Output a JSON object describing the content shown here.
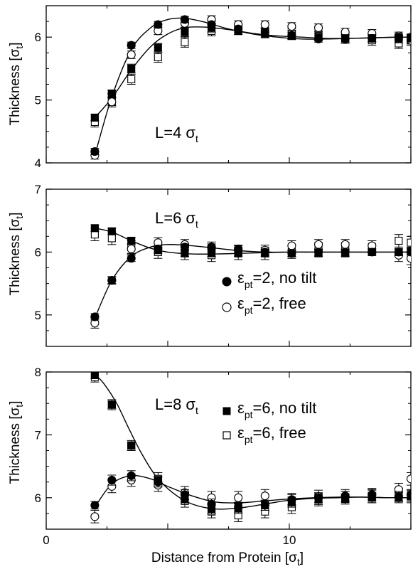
{
  "figure": {
    "xlabel": "Distance from Protein [σ",
    "xlabel_sub": "t",
    "xlabel_suffix": "]",
    "ylabel": "Thickness [σ",
    "ylabel_sub": "t",
    "ylabel_suffix": "]"
  },
  "legend": {
    "items": [
      {
        "marker": "filled-circle",
        "eps": "ε",
        "sub": "pt",
        "text": "=2, no tilt"
      },
      {
        "marker": "open-circle",
        "eps": "ε",
        "sub": "pt",
        "text": "=2, free"
      },
      {
        "marker": "filled-square",
        "eps": "ε",
        "sub": "pt",
        "text": "=6, no tilt"
      },
      {
        "marker": "open-square",
        "eps": "ε",
        "sub": "pt",
        "text": "=6, free"
      }
    ]
  },
  "chart_data": [
    {
      "type": "scatter",
      "panel_label": "L=4 σ",
      "panel_label_sub": "t",
      "xlim": [
        0,
        15
      ],
      "ylim": [
        4,
        6.5
      ],
      "yticks": [
        4,
        5,
        6
      ],
      "xticks": [
        0,
        10
      ],
      "series": [
        {
          "marker": "filled-circle",
          "x": [
            2,
            2.7,
            3.5,
            4.6,
            5.7,
            6.8,
            7.9,
            9,
            10.1,
            11.2,
            12.3,
            13.4,
            14.5,
            15
          ],
          "y": [
            4.18,
            5.1,
            5.87,
            6.2,
            6.28,
            6.2,
            6.13,
            6.08,
            6.03,
            5.97,
            5.97,
            5.98,
            6.0,
            6.0
          ],
          "err": [
            0.05,
            0.05,
            0.05,
            0.05,
            0.05,
            0.05,
            0.05,
            0.05,
            0.05,
            0.05,
            0.05,
            0.05,
            0.05,
            0.05
          ]
        },
        {
          "marker": "open-circle",
          "x": [
            2,
            2.7,
            3.5,
            4.6,
            5.7,
            6.8,
            7.9,
            9,
            10.1,
            11.2,
            12.3,
            13.4,
            14.5,
            15
          ],
          "y": [
            4.12,
            4.97,
            5.72,
            6.1,
            6.22,
            6.28,
            6.2,
            6.2,
            6.17,
            6.15,
            6.08,
            6.06,
            6.02,
            5.95
          ],
          "err": [
            0.06,
            0.06,
            0.06,
            0.06,
            0.06,
            0.06,
            0.06,
            0.06,
            0.06,
            0.06,
            0.06,
            0.06,
            0.06,
            0.06
          ]
        },
        {
          "marker": "filled-square",
          "x": [
            2,
            2.7,
            3.5,
            4.6,
            5.7,
            6.8,
            7.9,
            9,
            10.1,
            11.2,
            12.3,
            13.4,
            14.5,
            15
          ],
          "y": [
            4.72,
            5.1,
            5.5,
            5.83,
            6.08,
            6.15,
            6.1,
            6.05,
            6.02,
            6.0,
            5.98,
            5.98,
            5.97,
            5.98
          ],
          "err": [
            0.05,
            0.06,
            0.07,
            0.07,
            0.07,
            0.07,
            0.06,
            0.06,
            0.06,
            0.06,
            0.06,
            0.06,
            0.06,
            0.06
          ]
        },
        {
          "marker": "open-square",
          "x": [
            2,
            2.7,
            3.5,
            4.6,
            5.7,
            6.8,
            7.9,
            9,
            10.1,
            11.2,
            12.3,
            13.4,
            14.5,
            15
          ],
          "y": [
            4.65,
            4.97,
            5.33,
            5.68,
            5.92,
            6.1,
            6.12,
            6.07,
            6.05,
            6.02,
            5.98,
            5.95,
            5.9,
            5.95
          ],
          "err": [
            0.08,
            0.08,
            0.08,
            0.08,
            0.08,
            0.08,
            0.08,
            0.08,
            0.08,
            0.08,
            0.08,
            0.08,
            0.08,
            0.08
          ]
        }
      ],
      "fit_lines": [
        {
          "x": [
            2,
            2.7,
            3.5,
            4.3,
            5,
            5.7,
            6.5,
            7.5,
            8.5,
            9.5,
            10.5,
            11.5,
            12.5,
            13.5,
            14.5,
            15
          ],
          "y": [
            4.12,
            5.05,
            5.8,
            6.15,
            6.28,
            6.3,
            6.24,
            6.13,
            6.05,
            6.0,
            5.97,
            5.97,
            5.98,
            5.99,
            6.0,
            6.0
          ]
        },
        {
          "x": [
            2,
            2.7,
            3.5,
            4.3,
            5,
            5.7,
            6.5,
            7.5,
            8.5,
            9.5,
            10.5,
            11.5,
            12.5,
            13.5,
            14.5,
            15
          ],
          "y": [
            4.72,
            5.03,
            5.48,
            5.85,
            6.05,
            6.15,
            6.16,
            6.12,
            6.06,
            6.02,
            6.0,
            5.98,
            5.98,
            5.99,
            6.0,
            6.0
          ]
        }
      ]
    },
    {
      "type": "scatter",
      "panel_label": "L=6 σ",
      "panel_label_sub": "t",
      "xlim": [
        0,
        15
      ],
      "ylim": [
        4.5,
        7
      ],
      "yticks": [
        5,
        6,
        7
      ],
      "xticks": [
        0,
        10
      ],
      "series": [
        {
          "marker": "filled-circle",
          "x": [
            2,
            2.7,
            3.5,
            4.6,
            5.7,
            6.8,
            7.9,
            9,
            10.1,
            11.2,
            12.3,
            13.4,
            14.5,
            15
          ],
          "y": [
            4.97,
            5.55,
            5.9,
            6.05,
            6.08,
            6.08,
            6.05,
            6.0,
            5.98,
            6.0,
            6.0,
            6.0,
            6.0,
            6.0
          ],
          "err": [
            0.05,
            0.05,
            0.05,
            0.05,
            0.05,
            0.05,
            0.05,
            0.05,
            0.05,
            0.05,
            0.05,
            0.05,
            0.05,
            0.05
          ]
        },
        {
          "marker": "open-circle",
          "x": [
            2,
            2.7,
            3.5,
            4.6,
            5.7,
            6.8,
            7.9,
            9,
            10.1,
            11.2,
            12.3,
            13.4,
            14.5,
            15
          ],
          "y": [
            4.87,
            5.55,
            6.05,
            6.15,
            6.12,
            6.08,
            6.03,
            6.03,
            6.1,
            6.12,
            6.12,
            6.1,
            5.95,
            5.9
          ],
          "err": [
            0.08,
            0.06,
            0.08,
            0.08,
            0.08,
            0.08,
            0.08,
            0.08,
            0.08,
            0.08,
            0.08,
            0.08,
            0.1,
            0.1
          ]
        },
        {
          "marker": "filled-square",
          "x": [
            2,
            2.7,
            3.5,
            4.6,
            5.7,
            6.8,
            7.9,
            9,
            10.1,
            11.2,
            12.3,
            13.4,
            14.5,
            15
          ],
          "y": [
            6.38,
            6.33,
            6.18,
            6.03,
            5.98,
            5.98,
            5.98,
            5.98,
            5.98,
            5.98,
            5.98,
            6.0,
            6.0,
            6.02
          ],
          "err": [
            0.05,
            0.05,
            0.05,
            0.05,
            0.05,
            0.05,
            0.05,
            0.05,
            0.05,
            0.05,
            0.05,
            0.05,
            0.05,
            0.05
          ]
        },
        {
          "marker": "open-square",
          "x": [
            2,
            2.7,
            3.5,
            4.6,
            5.7,
            6.8,
            7.9,
            9,
            10.1,
            11.2,
            12.3,
            13.4,
            14.5,
            15
          ],
          "y": [
            6.28,
            6.22,
            6.08,
            6.0,
            5.98,
            5.95,
            5.98,
            5.98,
            6.0,
            6.05,
            6.05,
            6.08,
            6.18,
            6.15
          ],
          "err": [
            0.1,
            0.1,
            0.1,
            0.1,
            0.1,
            0.1,
            0.1,
            0.1,
            0.1,
            0.1,
            0.1,
            0.1,
            0.1,
            0.1
          ]
        }
      ],
      "fit_lines": [
        {
          "x": [
            2,
            2.7,
            3.5,
            4.3,
            5,
            6,
            7,
            8,
            9,
            10,
            11,
            12,
            13,
            14,
            15
          ],
          "y": [
            4.95,
            5.55,
            5.93,
            6.08,
            6.12,
            6.1,
            6.06,
            6.02,
            6.0,
            6.0,
            6.0,
            6.0,
            6.0,
            6.0,
            6.0
          ]
        },
        {
          "x": [
            2,
            2.7,
            3.5,
            4.3,
            5,
            6,
            7,
            8,
            9,
            10,
            11,
            12,
            13,
            14,
            15
          ],
          "y": [
            6.38,
            6.32,
            6.18,
            6.06,
            6.0,
            5.97,
            5.97,
            5.98,
            5.99,
            6.0,
            6.0,
            6.0,
            6.0,
            6.0,
            6.0
          ]
        }
      ]
    },
    {
      "type": "scatter",
      "panel_label": "L=8 σ",
      "panel_label_sub": "t",
      "xlim": [
        0,
        15
      ],
      "ylim": [
        5.5,
        8
      ],
      "yticks": [
        6,
        7,
        8
      ],
      "xticks": [
        0,
        10
      ],
      "series": [
        {
          "marker": "filled-circle",
          "x": [
            2,
            2.7,
            3.5,
            4.6,
            5.7,
            6.8,
            7.9,
            9,
            10.1,
            11.2,
            12.3,
            13.4,
            14.5,
            15
          ],
          "y": [
            5.88,
            6.28,
            6.35,
            6.25,
            6.05,
            5.9,
            5.85,
            5.88,
            5.97,
            6.0,
            6.02,
            6.05,
            6.02,
            6.05
          ],
          "err": [
            0.06,
            0.08,
            0.08,
            0.08,
            0.08,
            0.08,
            0.08,
            0.08,
            0.08,
            0.08,
            0.08,
            0.08,
            0.08,
            0.08
          ]
        },
        {
          "marker": "open-circle",
          "x": [
            2,
            2.7,
            3.5,
            4.6,
            5.7,
            6.8,
            7.9,
            9,
            10.1,
            11.2,
            12.3,
            13.4,
            14.5,
            15
          ],
          "y": [
            5.7,
            6.18,
            6.28,
            6.2,
            6.08,
            6.0,
            6.0,
            6.03,
            5.97,
            6.02,
            6.03,
            6.05,
            6.13,
            6.3
          ],
          "err": [
            0.1,
            0.1,
            0.1,
            0.1,
            0.1,
            0.1,
            0.1,
            0.1,
            0.1,
            0.1,
            0.1,
            0.1,
            0.1,
            0.1
          ]
        },
        {
          "marker": "filled-square",
          "x": [
            2,
            2.7,
            3.5,
            4.6,
            5.7,
            6.8,
            7.9,
            9,
            10.1,
            11.2,
            12.3,
            13.4,
            14.5,
            15
          ],
          "y": [
            7.95,
            7.48,
            6.83,
            6.28,
            5.98,
            5.82,
            5.83,
            5.88,
            5.93,
            5.97,
            5.98,
            6.0,
            6.0,
            6.02
          ],
          "err": [
            0.05,
            0.06,
            0.06,
            0.06,
            0.08,
            0.08,
            0.08,
            0.08,
            0.08,
            0.08,
            0.08,
            0.08,
            0.08,
            0.08
          ]
        },
        {
          "marker": "open-square",
          "x": [
            2,
            2.7,
            3.5,
            4.6,
            5.7,
            6.8,
            7.9,
            9,
            10.1,
            11.2,
            12.3,
            13.4,
            14.5,
            15
          ],
          "y": [
            7.92,
            7.48,
            6.83,
            6.3,
            5.95,
            5.78,
            5.72,
            5.78,
            5.85,
            5.97,
            6.0,
            6.02,
            6.05,
            6.02
          ],
          "err": [
            0.08,
            0.08,
            0.08,
            0.1,
            0.1,
            0.1,
            0.1,
            0.1,
            0.1,
            0.1,
            0.1,
            0.1,
            0.1,
            0.1
          ]
        }
      ],
      "fit_lines": [
        {
          "x": [
            2,
            2.7,
            3.5,
            4.3,
            5,
            6,
            7,
            8,
            9,
            10,
            11,
            12,
            13,
            14,
            15
          ],
          "y": [
            5.85,
            6.22,
            6.35,
            6.3,
            6.18,
            6.03,
            5.93,
            5.92,
            5.95,
            5.98,
            6.0,
            6.01,
            6.01,
            6.0,
            6.0
          ]
        },
        {
          "x": [
            2,
            2.4,
            2.9,
            3.4,
            3.9,
            4.5,
            5.2,
            6,
            7,
            8,
            9,
            10,
            11,
            12,
            13,
            14,
            15
          ],
          "y": [
            7.97,
            7.8,
            7.5,
            7.1,
            6.72,
            6.35,
            6.08,
            5.9,
            5.82,
            5.84,
            5.9,
            5.96,
            5.99,
            6.0,
            6.01,
            6.0,
            6.0
          ]
        }
      ]
    }
  ]
}
